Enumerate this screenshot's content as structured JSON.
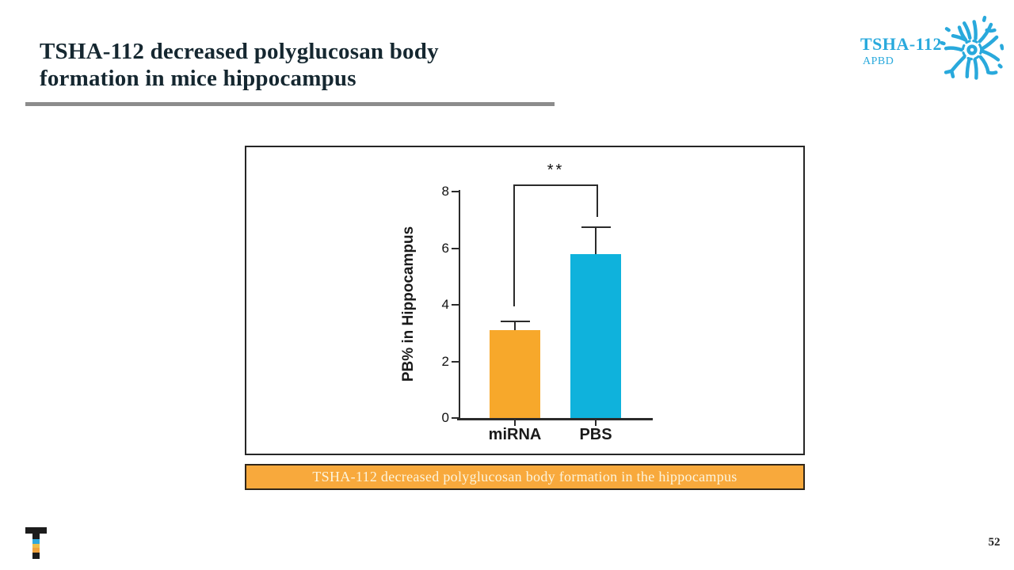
{
  "slide": {
    "title_line1": "TSHA-112 decreased polyglucosan body",
    "title_line2": "formation in mice hippocampus",
    "page_number": "52"
  },
  "logo": {
    "name": "TSHA-112",
    "sub": "APBD",
    "icon": "neuron-icon",
    "color": "#29A9DC"
  },
  "footer_logo": {
    "icon": "taysha-t-logo",
    "segment_colors": [
      "#1c1c1c",
      "#2FA8DC",
      "#EDBE4B",
      "#F0A23C",
      "#1c1c1c"
    ]
  },
  "caption": {
    "text": "TSHA-112 decreased polyglucosan body formation in the hippocampus",
    "bg_color": "#F8A93C",
    "text_color": "#FCF4DC"
  },
  "chart_data": {
    "type": "bar",
    "categories": [
      "miRNA",
      "PBS"
    ],
    "values": [
      3.1,
      5.8
    ],
    "error_caps": [
      3.4,
      6.75
    ],
    "bar_colors": [
      "#F7A82B",
      "#0FB2DC"
    ],
    "title": "",
    "xlabel": "",
    "ylabel": "PB% in Hippocampus",
    "yticks": [
      0,
      2,
      4,
      6,
      8
    ],
    "ylim": [
      0,
      8.2
    ],
    "grid": false,
    "legend": false,
    "significance": "**"
  }
}
